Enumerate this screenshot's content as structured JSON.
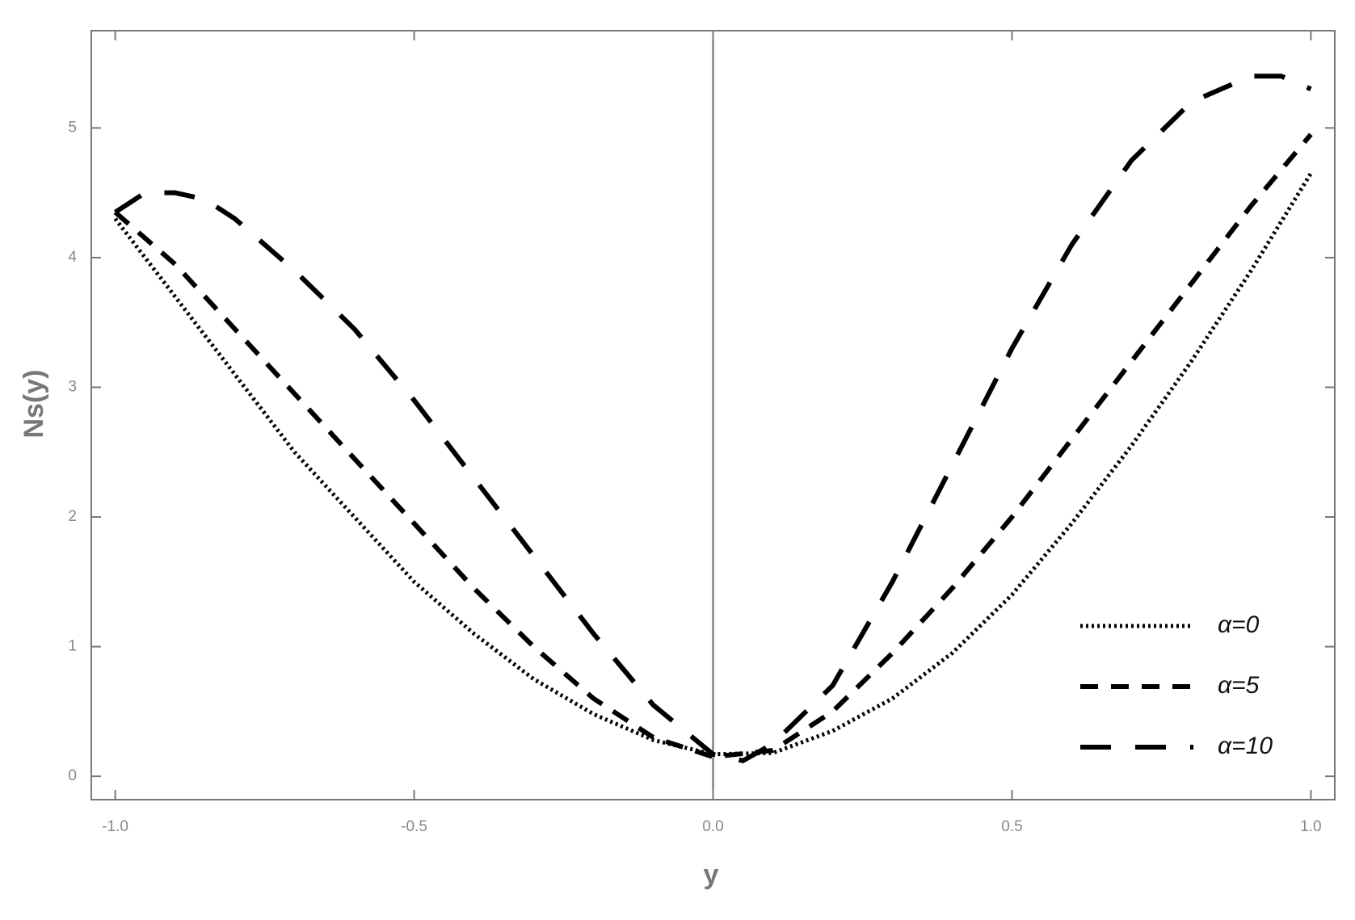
{
  "chart_data": {
    "type": "line",
    "x_label": "y",
    "y_label": "Ns(y)",
    "xlim": [
      -1.04,
      1.04
    ],
    "ylim": [
      -0.18,
      5.75
    ],
    "xticks": [
      {
        "value": -1,
        "label": "-1.0"
      },
      {
        "value": -0.5,
        "label": "-0.5"
      },
      {
        "value": 0,
        "label": "0.0"
      },
      {
        "value": 0.5,
        "label": "0.5"
      },
      {
        "value": 1,
        "label": "1.0"
      }
    ],
    "yticks": [
      0,
      1,
      2,
      3,
      4,
      5
    ],
    "legend": "lower right",
    "series": [
      {
        "name": "α=0",
        "color": "#000000",
        "style": "dotted",
        "x": [
          -1,
          -0.9,
          -0.8,
          -0.7,
          -0.6,
          -0.5,
          -0.4,
          -0.3,
          -0.2,
          -0.1,
          0,
          0.1,
          0.2,
          0.3,
          0.4,
          0.5,
          0.6,
          0.7,
          0.8,
          0.9,
          1
        ],
        "values": [
          4.3,
          3.7,
          3.1,
          2.5,
          2.0,
          1.5,
          1.1,
          0.75,
          0.48,
          0.28,
          0.17,
          0.18,
          0.35,
          0.6,
          0.95,
          1.4,
          1.95,
          2.55,
          3.2,
          3.9,
          4.65
        ]
      },
      {
        "name": "α=5",
        "color": "#000000",
        "style": "dashed",
        "x": [
          -1,
          -0.9,
          -0.8,
          -0.7,
          -0.6,
          -0.5,
          -0.4,
          -0.3,
          -0.2,
          -0.1,
          0,
          0.1,
          0.2,
          0.3,
          0.4,
          0.5,
          0.6,
          0.7,
          0.8,
          0.9,
          1
        ],
        "values": [
          4.35,
          3.95,
          3.45,
          2.95,
          2.45,
          1.95,
          1.45,
          1.0,
          0.6,
          0.3,
          0.15,
          0.2,
          0.5,
          0.95,
          1.45,
          2.0,
          2.6,
          3.2,
          3.8,
          4.4,
          4.95
        ]
      },
      {
        "name": "α=10",
        "color": "#000000",
        "style": "longdash",
        "x": [
          -1,
          -0.95,
          -0.9,
          -0.85,
          -0.8,
          -0.7,
          -0.6,
          -0.5,
          -0.4,
          -0.3,
          -0.2,
          -0.1,
          0,
          0.05,
          0.1,
          0.2,
          0.3,
          0.4,
          0.5,
          0.6,
          0.7,
          0.8,
          0.9,
          0.95,
          1
        ],
        "values": [
          4.35,
          4.5,
          4.5,
          4.45,
          4.3,
          3.9,
          3.45,
          2.9,
          2.3,
          1.7,
          1.1,
          0.55,
          0.17,
          0.12,
          0.25,
          0.7,
          1.5,
          2.4,
          3.3,
          4.1,
          4.75,
          5.2,
          5.4,
          5.4,
          5.3
        ]
      }
    ]
  }
}
